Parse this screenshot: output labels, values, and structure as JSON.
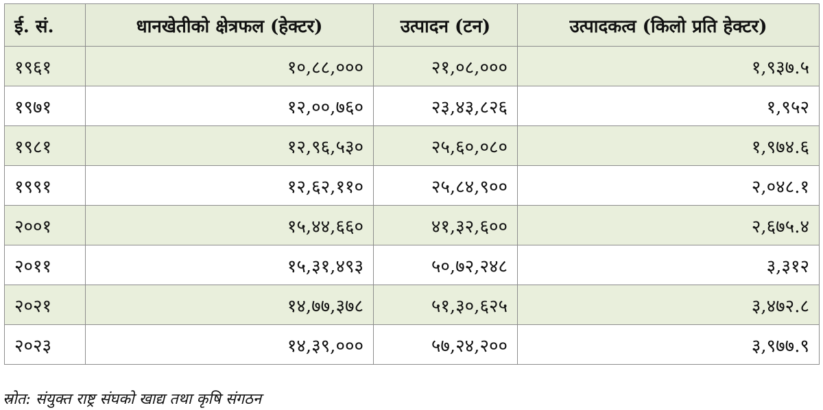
{
  "table": {
    "headers": [
      "ई. सं.",
      "धानखेतीको क्षेत्रफल (हेक्टर)",
      "उत्पादन (टन)",
      "उत्पादकत्व (किलो प्रति हेक्टर)"
    ],
    "rows": [
      {
        "year": "१९६१",
        "area": "१०,८८,०००",
        "production": "२१,०८,०००",
        "productivity": "१,९३७.५"
      },
      {
        "year": "१९७१",
        "area": "१२,००,७६०",
        "production": "२३,४३,८२६",
        "productivity": "१,९५२"
      },
      {
        "year": "१९८१",
        "area": "१२,९६,५३०",
        "production": "२५,६०,०८०",
        "productivity": "१,९७४.६"
      },
      {
        "year": "१९९१",
        "area": "१२,६२,११०",
        "production": "२५,८४,९००",
        "productivity": "२,०४८.१"
      },
      {
        "year": "२००१",
        "area": "१५,४४,६६०",
        "production": "४१,३२,६००",
        "productivity": "२,६७५.४"
      },
      {
        "year": "२०११",
        "area": "१५,३१,४९३",
        "production": "५०,७२,२४८",
        "productivity": "३,३१२"
      },
      {
        "year": "२०२१",
        "area": "१४,७७,३७८",
        "production": "५१,३०,६२५",
        "productivity": "३,४७२.८"
      },
      {
        "year": "२०२३",
        "area": "१४,३९,०००",
        "production": "५७,२४,२००",
        "productivity": "३,९७७.९"
      }
    ]
  },
  "source": "स्रोत: संयुक्त राष्ट्र संघको खाद्य तथा कृषि संगठन",
  "colors": {
    "header_bg": "#e6ecd9",
    "stripe_bg": "#e9efdc",
    "border": "#8c8c8c"
  }
}
